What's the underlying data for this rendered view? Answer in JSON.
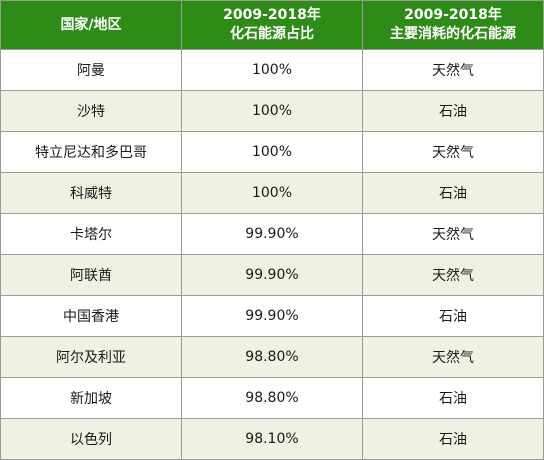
{
  "header": {
    "col1": "国家/地区",
    "col2_line1": "2009-2018年",
    "col2_line2": "化石能源占比",
    "col3_line1": "2009-2018年",
    "col3_line2": "主要消耗的化石能源"
  },
  "rows": [
    {
      "region": "阿曼",
      "share": "100%",
      "source": "天然气"
    },
    {
      "region": "沙特",
      "share": "100%",
      "source": "石油"
    },
    {
      "region": "特立尼达和多巴哥",
      "share": "100%",
      "source": "天然气"
    },
    {
      "region": "科威特",
      "share": "100%",
      "source": "石油"
    },
    {
      "region": "卡塔尔",
      "share": "99.90%",
      "source": "天然气"
    },
    {
      "region": "阿联酋",
      "share": "99.90%",
      "source": "天然气"
    },
    {
      "region": "中国香港",
      "share": "99.90%",
      "source": "石油"
    },
    {
      "region": "阿尔及利亚",
      "share": "98.80%",
      "source": "天然气"
    },
    {
      "region": "新加坡",
      "share": "98.80%",
      "source": "石油"
    },
    {
      "region": "以色列",
      "share": "98.10%",
      "source": "石油"
    }
  ],
  "colors": {
    "header_bg": "#2e8b17",
    "header_text": "#ffffff",
    "stripe": "#eef2e3",
    "border": "#9a9a9a"
  }
}
